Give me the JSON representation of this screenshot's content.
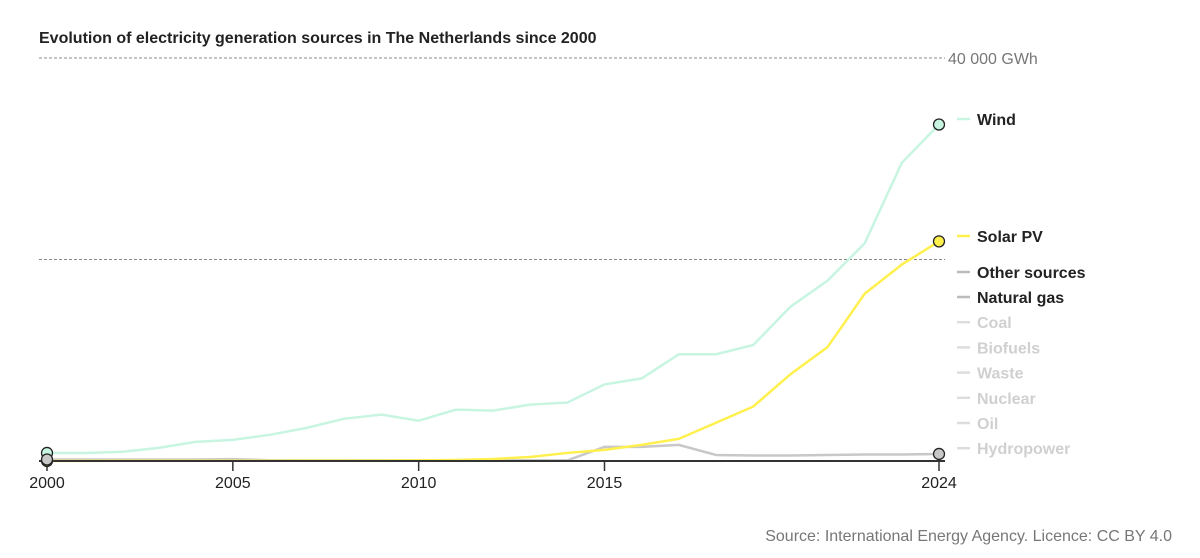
{
  "chart_data": {
    "type": "line",
    "title": "Evolution of electricity generation sources in The Netherlands since 2000",
    "source": "Source: International Energy Agency. Licence: CC BY 4.0",
    "ylim": [
      0,
      40000
    ],
    "y_gridlines": [
      20000,
      40000
    ],
    "y_top_label": "40 000 GWh",
    "unit": "GWh",
    "x_ticks": [
      "2000",
      "2005",
      "2010",
      "2015",
      "2024"
    ],
    "x": [
      2000,
      2001,
      2002,
      2003,
      2004,
      2005,
      2006,
      2007,
      2008,
      2009,
      2010,
      2011,
      2012,
      2013,
      2014,
      2015,
      2016,
      2017,
      2018,
      2019,
      2020,
      2021,
      2022,
      2023,
      2024
    ],
    "series": [
      {
        "name": "Wind",
        "color": "#c8f5e1",
        "highlight": true,
        "values": [
          800,
          800,
          900,
          1300,
          1900,
          2100,
          2600,
          3300,
          4200,
          4600,
          4000,
          5100,
          5000,
          5600,
          5800,
          7600,
          8200,
          10600,
          10600,
          11500,
          15300,
          17900,
          21600,
          29600,
          33400
        ]
      },
      {
        "name": "Solar PV",
        "color": "#fff04d",
        "highlight": true,
        "values": [
          10,
          10,
          20,
          20,
          30,
          30,
          30,
          40,
          40,
          50,
          60,
          100,
          200,
          400,
          800,
          1100,
          1600,
          2200,
          3800,
          5400,
          8600,
          11300,
          16600,
          19500,
          21800
        ]
      },
      {
        "name": "Other sources",
        "color": "#c8c8c8",
        "highlight": true,
        "values": [
          150,
          150,
          150,
          150,
          150,
          180,
          80,
          60,
          60,
          60,
          60,
          60,
          60,
          60,
          60,
          1400,
          1400,
          1600,
          600,
          550,
          550,
          600,
          650,
          650,
          700
        ]
      }
    ],
    "legend_muted": [
      "Natural gas",
      "Coal",
      "Biofuels",
      "Waste",
      "Nuclear",
      "Oil",
      "Hydropower"
    ],
    "legend_placement": "right"
  }
}
